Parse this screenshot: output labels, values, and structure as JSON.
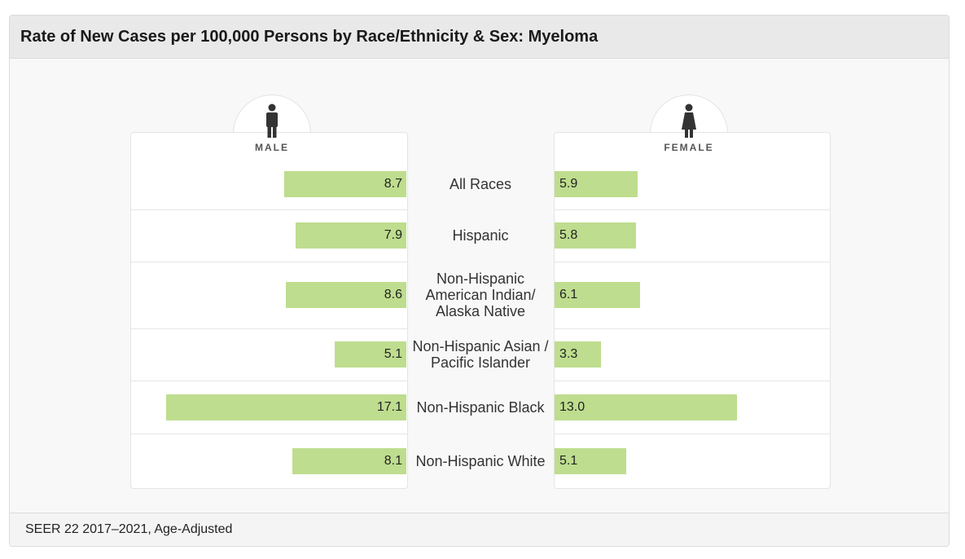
{
  "title": "Rate of New Cases per 100,000 Persons by Race/Ethnicity & Sex: Myeloma",
  "source": "SEER 22 2017–2021, Age-Adjusted",
  "colors": {
    "bar": "#bedd8e",
    "icon": "#333333"
  },
  "chart_data": {
    "type": "bar",
    "orientation": "horizontal-butterfly",
    "categories": [
      "All Races",
      "Hispanic",
      "Non-Hispanic American Indian/ Alaska Native",
      "Non-Hispanic Asian / Pacific Islander",
      "Non-Hispanic Black",
      "Non-Hispanic White"
    ],
    "series": [
      {
        "name": "MALE",
        "values": [
          8.7,
          7.9,
          8.6,
          5.1,
          17.1,
          8.1
        ]
      },
      {
        "name": "FEMALE",
        "values": [
          5.9,
          5.8,
          6.1,
          3.3,
          13.0,
          5.1
        ]
      }
    ],
    "value_labels": {
      "male": [
        "8.7",
        "7.9",
        "8.6",
        "5.1",
        "17.1",
        "8.1"
      ],
      "female": [
        "5.9",
        "5.8",
        "6.1",
        "3.3",
        "13.0",
        "5.1"
      ]
    },
    "category_lines": [
      [
        "All Races"
      ],
      [
        "Hispanic"
      ],
      [
        "Non-Hispanic",
        "American Indian/",
        "Alaska Native"
      ],
      [
        "Non-Hispanic Asian /",
        "Pacific Islander"
      ],
      [
        "Non-Hispanic Black"
      ],
      [
        "Non-Hispanic White"
      ]
    ]
  }
}
